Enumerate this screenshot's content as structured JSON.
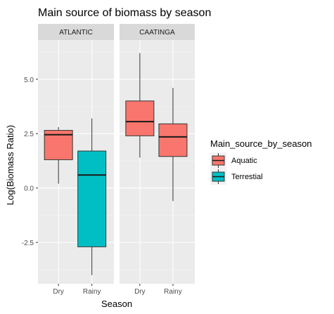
{
  "chart_data": {
    "type": "boxplot",
    "title": "Main source of biomass by season",
    "xlabel": "Season",
    "ylabel": "Log(Biomass Ratio)",
    "ylim": [
      -4.4,
      6.8
    ],
    "y_ticks": [
      -2.5,
      0.0,
      2.5,
      5.0
    ],
    "y_tick_labels": [
      "-2.5",
      "0.0",
      "2.5",
      "5.0"
    ],
    "categories": [
      "Dry",
      "Rainy"
    ],
    "facets": [
      {
        "name": "ATLANTIC",
        "boxes": [
          {
            "season": "Dry",
            "group": "Aquatic",
            "min": 0.2,
            "q1": 1.3,
            "median": 2.45,
            "q3": 2.65,
            "max": 2.8
          },
          {
            "season": "Rainy",
            "group": "Terrestial",
            "min": -4.0,
            "q1": -2.7,
            "median": 0.6,
            "q3": 1.7,
            "max": 3.2
          }
        ]
      },
      {
        "name": "CAATINGA",
        "boxes": [
          {
            "season": "Dry",
            "group": "Aquatic",
            "min": 1.4,
            "q1": 2.4,
            "median": 3.05,
            "q3": 4.0,
            "max": 6.2
          },
          {
            "season": "Rainy",
            "group": "Aquatic",
            "min": -0.6,
            "q1": 1.45,
            "median": 2.35,
            "q3": 2.95,
            "max": 4.6
          }
        ]
      }
    ],
    "legend": {
      "title": "Main_source_by_season",
      "position": "right",
      "entries": [
        {
          "name": "Aquatic",
          "color": "#F8766D"
        },
        {
          "name": "Terrestial",
          "color": "#00BFC4"
        }
      ]
    },
    "grid": true,
    "colors": {
      "panel_background": "#EBEBEB",
      "strip_background": "#D9D9D9",
      "grid_major": "#FFFFFF",
      "Aquatic": "#F8766D",
      "Terrestial": "#00BFC4"
    }
  }
}
